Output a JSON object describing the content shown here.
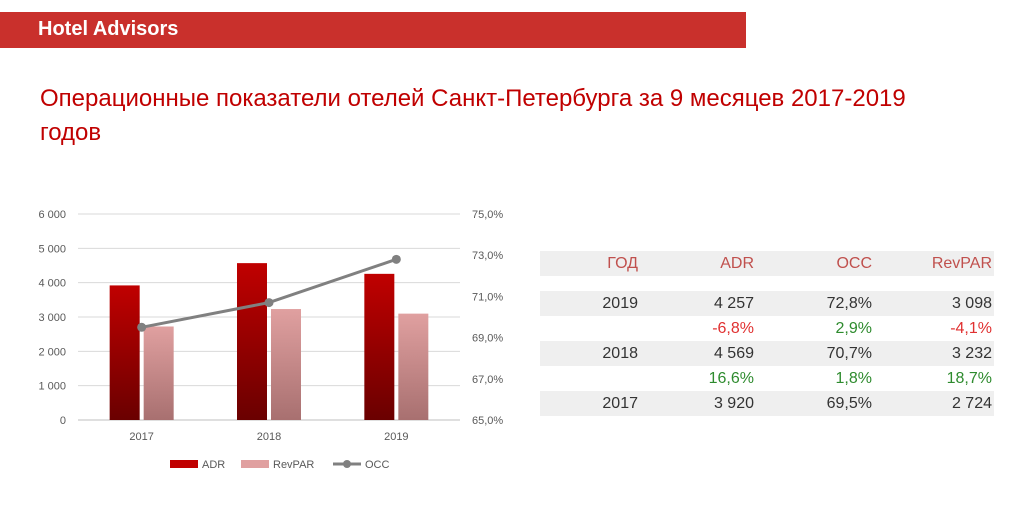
{
  "header": {
    "brand": "Hotel Advisors"
  },
  "title": "Операционные показатели отелей Санкт-Петербурга за 9 месяцев 2017-2019 годов",
  "colors": {
    "brand": "#c9302c",
    "title": "#c00000",
    "adr": "#c00000",
    "revpar": "#e0a0a0",
    "occ": "#808080"
  },
  "chart_data": {
    "type": "bar",
    "categories": [
      "2017",
      "2018",
      "2019"
    ],
    "series": [
      {
        "name": "ADR",
        "type": "bar",
        "axis": "left",
        "values": [
          3920,
          4569,
          4257
        ]
      },
      {
        "name": "RevPAR",
        "type": "bar",
        "axis": "left",
        "values": [
          2724,
          3232,
          3098
        ]
      },
      {
        "name": "OCC",
        "type": "line",
        "axis": "right",
        "values": [
          69.5,
          70.7,
          72.8
        ]
      }
    ],
    "y_left": {
      "min": 0,
      "max": 6000,
      "ticks": [
        "0",
        "1 000",
        "2 000",
        "3 000",
        "4 000",
        "5 000",
        "6 000"
      ]
    },
    "y_right": {
      "min": 65,
      "max": 75,
      "ticks": [
        "65,0%",
        "67,0%",
        "69,0%",
        "71,0%",
        "73,0%",
        "75,0%"
      ]
    },
    "grid": true,
    "legend": "bottom"
  },
  "table": {
    "headers": [
      "ГОД",
      "ADR",
      "OCC",
      "RevPAR"
    ],
    "rows": [
      {
        "year": "2019",
        "adr": "4 257",
        "occ": "72,8%",
        "revpar": "3 098"
      },
      {
        "year": "",
        "adr": "-6,8%",
        "occ": "2,9%",
        "revpar": "-4,1%"
      },
      {
        "year": "2018",
        "adr": "4 569",
        "occ": "70,7%",
        "revpar": "3 232"
      },
      {
        "year": "",
        "adr": "16,6%",
        "occ": "1,8%",
        "revpar": "18,7%"
      },
      {
        "year": "2017",
        "adr": "3 920",
        "occ": "69,5%",
        "revpar": "2 724"
      }
    ]
  }
}
